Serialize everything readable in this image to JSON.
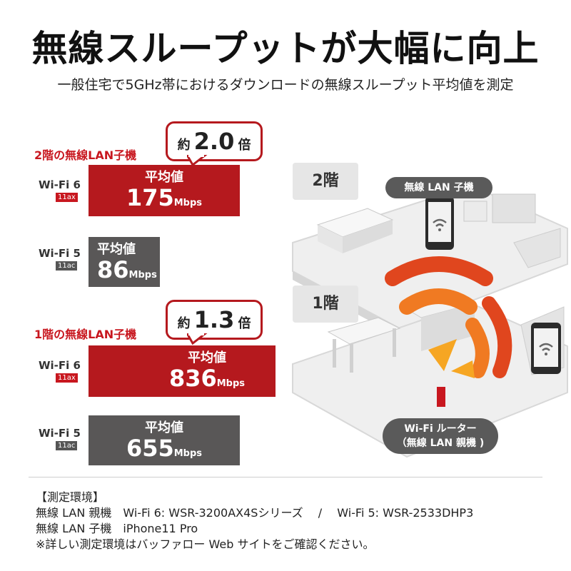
{
  "title": "無線スループットが大幅に向上",
  "subtitle": "一般住宅で5GHz帯におけるダウンロードの無線スループット平均値を測定",
  "floor2": {
    "label": "2階の無線LAN子機",
    "bubble": {
      "prefix": "約",
      "ratio": "2.0",
      "suffix": "倍"
    },
    "wifi6": {
      "name": "Wi-Fi 6",
      "tag": "11ax",
      "avg_label": "平均値",
      "value": "175",
      "unit": "Mbps"
    },
    "wifi5": {
      "name": "Wi-Fi 5",
      "tag": "11ac",
      "avg_label": "平均値",
      "value": "86",
      "unit": "Mbps"
    }
  },
  "floor1": {
    "label": "1階の無線LAN子機",
    "bubble": {
      "prefix": "約",
      "ratio": "1.3",
      "suffix": "倍"
    },
    "wifi6": {
      "name": "Wi-Fi 6",
      "tag": "11ax",
      "avg_label": "平均値",
      "value": "836",
      "unit": "Mbps"
    },
    "wifi5": {
      "name": "Wi-Fi 5",
      "tag": "11ac",
      "avg_label": "平均値",
      "value": "655",
      "unit": "Mbps"
    }
  },
  "illustration": {
    "floor2_box": "2階",
    "floor1_box": "1階",
    "client_pill": "無線 LAN 子機",
    "router_pill_line1": "Wi-Fi ルーター",
    "router_pill_line2": "（無線 LAN 親機 )",
    "colors": {
      "signal_red": "#e0461e",
      "signal_orange": "#f07a22",
      "signal_yellow": "#f6a623",
      "router_red": "#c8171f"
    }
  },
  "environment": {
    "heading": "【測定環境】",
    "line1": "無線 LAN 親機　Wi-Fi 6: WSR-3200AX4Sシリーズ　 /　 Wi-Fi 5: WSR-2533DHP3",
    "line2": "無線 LAN 子機　iPhone11 Pro",
    "line3": "※詳しい測定環境はバッファロー Web サイトをご確認ください。"
  }
}
